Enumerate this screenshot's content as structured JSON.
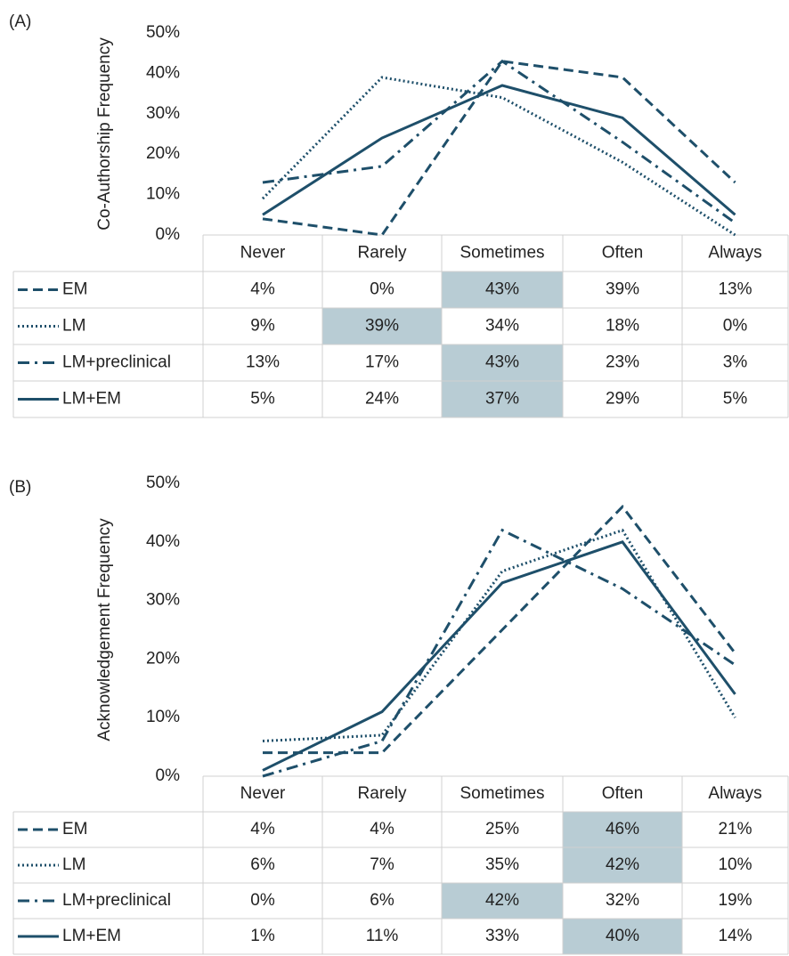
{
  "chart_data": [
    {
      "type": "line",
      "label": "(A)",
      "y_axis_label": "Co-Authorship Frequency",
      "categories": [
        "Never",
        "Rarely",
        "Sometimes",
        "Often",
        "Always"
      ],
      "ylim": [
        0,
        50
      ],
      "yticks": [
        {
          "value": 0,
          "label": "0%"
        },
        {
          "value": 10,
          "label": "10%"
        },
        {
          "value": 20,
          "label": "20%"
        },
        {
          "value": 30,
          "label": "30%"
        },
        {
          "value": 40,
          "label": "40%"
        },
        {
          "value": 50,
          "label": "50%"
        }
      ],
      "highlight_color": "#b8ccd4",
      "series": [
        {
          "name": "EM",
          "color": "#1e4f6a",
          "dash": "dashed",
          "values": [
            4,
            0,
            43,
            39,
            13
          ],
          "value_labels": [
            "4%",
            "0%",
            "43%",
            "39%",
            "13%"
          ]
        },
        {
          "name": "LM",
          "color": "#1e4f6a",
          "dash": "dotted",
          "values": [
            9,
            39,
            34,
            18,
            0
          ],
          "value_labels": [
            "9%",
            "39%",
            "34%",
            "18%",
            "0%"
          ]
        },
        {
          "name": "LM+preclinical",
          "color": "#1e4f6a",
          "dash": "dashdot",
          "values": [
            13,
            17,
            43,
            23,
            3
          ],
          "value_labels": [
            "13%",
            "17%",
            "43%",
            "23%",
            "3%"
          ]
        },
        {
          "name": "LM+EM",
          "color": "#1e4f6a",
          "dash": "solid",
          "values": [
            5,
            24,
            37,
            29,
            5
          ],
          "value_labels": [
            "5%",
            "24%",
            "37%",
            "29%",
            "5%"
          ]
        }
      ]
    },
    {
      "type": "line",
      "label": "(B)",
      "y_axis_label": "Acknowledgement Frequency",
      "categories": [
        "Never",
        "Rarely",
        "Sometimes",
        "Often",
        "Always"
      ],
      "ylim": [
        0,
        50
      ],
      "yticks": [
        {
          "value": 0,
          "label": "0%"
        },
        {
          "value": 10,
          "label": "10%"
        },
        {
          "value": 20,
          "label": "20%"
        },
        {
          "value": 30,
          "label": "30%"
        },
        {
          "value": 40,
          "label": "40%"
        },
        {
          "value": 50,
          "label": "50%"
        }
      ],
      "highlight_color": "#b8ccd4",
      "series": [
        {
          "name": "EM",
          "color": "#1e4f6a",
          "dash": "dashed",
          "values": [
            4,
            4,
            25,
            46,
            21
          ],
          "value_labels": [
            "4%",
            "4%",
            "25%",
            "46%",
            "21%"
          ]
        },
        {
          "name": "LM",
          "color": "#1e4f6a",
          "dash": "dotted",
          "values": [
            6,
            7,
            35,
            42,
            10
          ],
          "value_labels": [
            "6%",
            "7%",
            "35%",
            "42%",
            "10%"
          ]
        },
        {
          "name": "LM+preclinical",
          "color": "#1e4f6a",
          "dash": "dashdot",
          "values": [
            0,
            6,
            42,
            32,
            19
          ],
          "value_labels": [
            "0%",
            "6%",
            "42%",
            "32%",
            "19%"
          ]
        },
        {
          "name": "LM+EM",
          "color": "#1e4f6a",
          "dash": "solid",
          "values": [
            1,
            11,
            33,
            40,
            14
          ],
          "value_labels": [
            "1%",
            "11%",
            "33%",
            "40%",
            "14%"
          ]
        }
      ]
    }
  ]
}
